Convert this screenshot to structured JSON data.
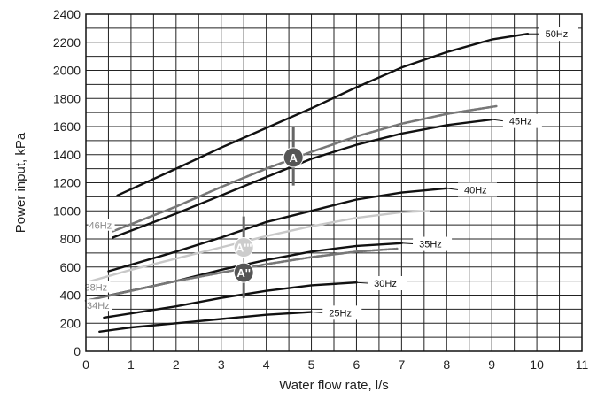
{
  "chart_data": {
    "type": "line",
    "xlabel": "Water flow rate, l/s",
    "ylabel": "Power input, kPa",
    "xlim": [
      0,
      11
    ],
    "ylim": [
      0,
      2400
    ],
    "xticks": [
      "0",
      "1",
      "2",
      "3",
      "4",
      "5",
      "6",
      "7",
      "8",
      "9",
      "10",
      "11"
    ],
    "yticks": [
      "0",
      "200",
      "400",
      "600",
      "800",
      "1000",
      "1200",
      "1400",
      "1600",
      "1800",
      "2000",
      "2200",
      "2400"
    ],
    "grid": true,
    "series": [
      {
        "name": "50Hz",
        "style": "solid",
        "color": "#111111",
        "x": [
          0.7,
          2,
          3,
          4,
          5,
          6,
          7,
          8,
          9,
          9.8
        ],
        "y": [
          1110,
          1300,
          1450,
          1590,
          1730,
          1880,
          2020,
          2130,
          2220,
          2260
        ]
      },
      {
        "name": "45Hz",
        "style": "solid",
        "color": "#111111",
        "x": [
          0.6,
          2,
          3,
          4,
          5,
          6,
          7,
          8,
          9
        ],
        "y": [
          810,
          980,
          1110,
          1240,
          1370,
          1470,
          1550,
          1610,
          1650
        ]
      },
      {
        "name": "46Hz",
        "style": "dashed",
        "color": "#777777",
        "x": [
          0.6,
          2,
          3,
          4,
          5,
          6,
          7,
          8,
          9.1
        ],
        "y": [
          855,
          1030,
          1170,
          1300,
          1420,
          1530,
          1620,
          1690,
          1745
        ]
      },
      {
        "name": "40Hz",
        "style": "solid",
        "color": "#111111",
        "x": [
          0.5,
          2,
          3,
          4,
          5,
          6,
          7,
          8
        ],
        "y": [
          570,
          710,
          810,
          920,
          1000,
          1080,
          1130,
          1160
        ]
      },
      {
        "name": "",
        "style": "solid",
        "color": "#c8c8c8",
        "x": [
          0,
          1,
          2,
          3,
          4,
          5,
          6,
          7,
          7.6
        ],
        "y": [
          490,
          580,
          660,
          740,
          820,
          890,
          950,
          990,
          1000
        ]
      },
      {
        "name": "35Hz",
        "style": "solid",
        "color": "#111111",
        "x": [
          0.4,
          2,
          3,
          4,
          5,
          6,
          7
        ],
        "y": [
          390,
          500,
          580,
          650,
          710,
          750,
          770
        ]
      },
      {
        "name": "",
        "style": "dashed",
        "color": "#777777",
        "x": [
          0,
          1,
          2,
          3,
          4,
          5,
          6,
          6.9
        ],
        "y": [
          360,
          430,
          500,
          560,
          620,
          670,
          710,
          730
        ]
      },
      {
        "name": "30Hz",
        "style": "solid",
        "color": "#111111",
        "x": [
          0.4,
          2,
          3,
          4,
          5,
          6
        ],
        "y": [
          240,
          320,
          380,
          430,
          470,
          490
        ]
      },
      {
        "name": "25Hz",
        "style": "solid",
        "color": "#111111",
        "x": [
          0.3,
          1,
          2,
          3,
          4,
          5
        ],
        "y": [
          140,
          170,
          200,
          230,
          260,
          280
        ]
      }
    ],
    "annotations": {
      "series_labels": [
        {
          "text": "50Hz",
          "x": 10.05,
          "y": 2260,
          "tick_from": [
            9.8,
            2260
          ],
          "tick_to": [
            9.8,
            2260
          ]
        },
        {
          "text": "45Hz",
          "x": 9.25,
          "y": 1640,
          "tick_from": [
            9.05,
            1640
          ],
          "tick_to": [
            9.0,
            1650
          ]
        },
        {
          "text": "40Hz",
          "x": 8.25,
          "y": 1150,
          "tick_from": [
            8.05,
            1150
          ],
          "tick_to": [
            8.0,
            1160
          ]
        },
        {
          "text": "35Hz",
          "x": 7.25,
          "y": 765,
          "tick_from": [
            7.05,
            765
          ],
          "tick_to": [
            7.0,
            770
          ]
        },
        {
          "text": "30Hz",
          "x": 6.25,
          "y": 485,
          "tick_from": [
            6.05,
            490
          ],
          "tick_to": [
            6.0,
            490
          ]
        },
        {
          "text": "25Hz",
          "x": 5.25,
          "y": 275,
          "tick_from": [
            5.05,
            280
          ],
          "tick_to": [
            5.0,
            280
          ]
        }
      ],
      "grey_labels": [
        {
          "text": "46Hz",
          "x": 0.05,
          "y": 890
        },
        {
          "text": "38Hz",
          "x": -0.05,
          "y": 450
        },
        {
          "text": "34Hz",
          "x": 0.0,
          "y": 320
        }
      ],
      "markers": [
        {
          "label": "A",
          "x": 4.6,
          "y": 1380,
          "fill": "#555555",
          "range": [
            1180,
            1600
          ]
        },
        {
          "label": "A'''",
          "x": 3.5,
          "y": 740,
          "fill": "#cccccc",
          "range": [
            740,
            960
          ]
        },
        {
          "label": "A''",
          "x": 3.5,
          "y": 560,
          "fill": "#555555",
          "range": [
            380,
            560
          ]
        }
      ]
    }
  }
}
